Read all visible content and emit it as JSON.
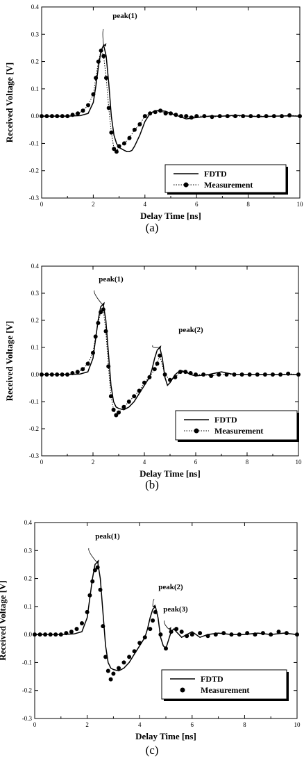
{
  "chart_data": [
    {
      "type": "line",
      "caption": "(a)",
      "xlabel": "Delay Time  [ns]",
      "ylabel": "Received Voltage  [V]",
      "xlim": [
        0,
        10
      ],
      "ylim": [
        -0.3,
        0.4
      ],
      "xticks": [
        "0",
        "2",
        "4",
        "6",
        "8",
        "10"
      ],
      "yticks": [
        "-0.3",
        "-0.2",
        "-0.1",
        "0.0",
        "0.1",
        "0.2",
        "0.3",
        "0.4"
      ],
      "legend": {
        "position": "lower-right",
        "entries": [
          "FDTD",
          "Measurement"
        ]
      },
      "annotations": [
        {
          "text": "peak(1)",
          "x": 2.4,
          "y": 0.26
        }
      ],
      "series": [
        {
          "name": "FDTD",
          "style": "solid",
          "x": [
            0,
            1.0,
            1.5,
            1.8,
            2.0,
            2.1,
            2.2,
            2.3,
            2.4,
            2.5,
            2.6,
            2.7,
            2.8,
            2.9,
            3.0,
            3.1,
            3.2,
            3.3,
            3.4,
            3.5,
            3.6,
            3.8,
            4.0,
            4.2,
            4.4,
            4.6,
            4.8,
            5.0,
            5.3,
            5.6,
            6.0,
            6.5,
            7.0,
            7.5,
            8.0,
            8.5,
            9.0,
            9.5,
            10.0
          ],
          "y": [
            0.0,
            0.0,
            0.002,
            0.01,
            0.05,
            0.11,
            0.18,
            0.24,
            0.26,
            0.22,
            0.12,
            0.0,
            -0.07,
            -0.1,
            -0.115,
            -0.12,
            -0.125,
            -0.13,
            -0.13,
            -0.125,
            -0.11,
            -0.07,
            -0.02,
            0.01,
            0.02,
            0.02,
            0.018,
            0.01,
            0.0,
            -0.01,
            -0.005,
            0.0,
            0.0,
            0.003,
            0.0,
            -0.002,
            0.0,
            0.001,
            0.0
          ]
        },
        {
          "name": "Measurement",
          "style": "dotted-markers",
          "x": [
            0,
            0.2,
            0.4,
            0.6,
            0.8,
            1.0,
            1.2,
            1.4,
            1.6,
            1.8,
            2.0,
            2.1,
            2.2,
            2.3,
            2.4,
            2.5,
            2.6,
            2.7,
            2.8,
            2.9,
            3.0,
            3.2,
            3.4,
            3.6,
            3.8,
            4.0,
            4.2,
            4.4,
            4.6,
            4.8,
            5.0,
            5.2,
            5.4,
            5.6,
            5.8,
            6.0,
            6.3,
            6.6,
            6.9,
            7.2,
            7.5,
            7.8,
            8.1,
            8.4,
            8.7,
            9.0,
            9.3,
            9.6,
            10.0
          ],
          "y": [
            0.0,
            0.0,
            0.0,
            0.0,
            0.0,
            0.0,
            0.005,
            0.01,
            0.02,
            0.04,
            0.08,
            0.14,
            0.2,
            0.24,
            0.22,
            0.14,
            0.03,
            -0.06,
            -0.12,
            -0.13,
            -0.11,
            -0.1,
            -0.08,
            -0.05,
            -0.03,
            0.0,
            0.01,
            0.015,
            0.02,
            0.01,
            0.01,
            0.005,
            0.0,
            0.0,
            -0.005,
            0.0,
            0.0,
            -0.003,
            0.0,
            0.0,
            0.0,
            0.0,
            0.0,
            0.0,
            0.0,
            0.0,
            0.0,
            0.003,
            0.0
          ]
        }
      ]
    },
    {
      "type": "line",
      "caption": "(b)",
      "xlabel": "Delay Time  [ns]",
      "ylabel": "Received Voltage  [V]",
      "xlim": [
        0,
        10
      ],
      "ylim": [
        -0.3,
        0.4
      ],
      "xticks": [
        "0",
        "2",
        "4",
        "6",
        "8",
        "10"
      ],
      "yticks": [
        "-0.3",
        "-0.2",
        "-0.1",
        "0.0",
        "0.1",
        "0.2",
        "0.3",
        "0.4"
      ],
      "legend": {
        "position": "lower-right",
        "entries": [
          "FDTD",
          "Measurement"
        ]
      },
      "annotations": [
        {
          "text": "peak(1)",
          "x": 2.35,
          "y": 0.26
        },
        {
          "text": "peak(2)",
          "x": 4.55,
          "y": 0.1
        }
      ],
      "series": [
        {
          "name": "FDTD",
          "style": "solid",
          "x": [
            0,
            1.0,
            1.5,
            1.8,
            2.0,
            2.1,
            2.2,
            2.3,
            2.4,
            2.5,
            2.6,
            2.7,
            2.8,
            2.9,
            3.0,
            3.2,
            3.4,
            3.6,
            3.8,
            4.0,
            4.2,
            4.3,
            4.4,
            4.5,
            4.6,
            4.7,
            4.8,
            4.9,
            5.0,
            5.2,
            5.4,
            5.6,
            5.8,
            6.0,
            6.5,
            7.0,
            7.5,
            8.0,
            9.0,
            10.0
          ],
          "y": [
            0.0,
            0.0,
            0.002,
            0.01,
            0.06,
            0.13,
            0.2,
            0.25,
            0.26,
            0.2,
            0.08,
            -0.04,
            -0.1,
            -0.12,
            -0.125,
            -0.13,
            -0.12,
            -0.1,
            -0.07,
            -0.04,
            -0.01,
            0.02,
            0.06,
            0.09,
            0.1,
            0.06,
            -0.01,
            -0.04,
            -0.03,
            0.0,
            0.015,
            0.01,
            0.0,
            -0.005,
            0.0,
            0.01,
            0.0,
            0.0,
            0.0,
            0.0
          ]
        },
        {
          "name": "Measurement",
          "style": "dotted-markers",
          "x": [
            0,
            0.2,
            0.4,
            0.6,
            0.8,
            1.0,
            1.2,
            1.4,
            1.6,
            1.8,
            2.0,
            2.1,
            2.2,
            2.3,
            2.4,
            2.5,
            2.6,
            2.7,
            2.8,
            2.9,
            3.0,
            3.2,
            3.4,
            3.6,
            3.8,
            4.0,
            4.2,
            4.4,
            4.5,
            4.6,
            4.8,
            5.0,
            5.2,
            5.4,
            5.6,
            5.8,
            6.0,
            6.3,
            6.6,
            6.9,
            7.2,
            7.5,
            7.8,
            8.1,
            8.4,
            8.7,
            9.0,
            9.3,
            9.6,
            10.0
          ],
          "y": [
            0.0,
            0.0,
            0.0,
            0.0,
            0.0,
            0.0,
            0.005,
            0.01,
            0.02,
            0.04,
            0.08,
            0.14,
            0.19,
            0.23,
            0.24,
            0.16,
            0.03,
            -0.08,
            -0.13,
            -0.15,
            -0.14,
            -0.12,
            -0.1,
            -0.08,
            -0.06,
            -0.03,
            -0.01,
            0.02,
            0.04,
            0.07,
            0.0,
            -0.02,
            -0.01,
            0.01,
            0.01,
            0.005,
            0.0,
            0.0,
            -0.005,
            0.0,
            0.0,
            0.0,
            0.0,
            0.0,
            0.0,
            0.0,
            0.0,
            0.0,
            0.003,
            0.0
          ]
        }
      ]
    },
    {
      "type": "line",
      "caption": "(c)",
      "xlabel": "Delay Time  [ns]",
      "ylabel": "Received Voltage [V]",
      "xlim": [
        0,
        10
      ],
      "ylim": [
        -0.3,
        0.4
      ],
      "xticks": [
        "0",
        "2",
        "4",
        "6",
        "8",
        "10"
      ],
      "yticks": [
        "-0.3",
        "-0.2",
        "-0.1",
        "0.0",
        "0.1",
        "0.2",
        "0.3",
        "0.4"
      ],
      "legend": {
        "position": "lower-right",
        "entries": [
          "FDTD",
          "Measurement"
        ]
      },
      "annotations": [
        {
          "text": "peak(1)",
          "x": 2.35,
          "y": 0.26
        },
        {
          "text": "peak(2)",
          "x": 4.5,
          "y": 0.1
        },
        {
          "text": "peak(3)",
          "x": 5.1,
          "y": 0.02
        }
      ],
      "series": [
        {
          "name": "FDTD",
          "style": "solid",
          "x": [
            0,
            1.0,
            1.5,
            1.8,
            2.0,
            2.1,
            2.2,
            2.3,
            2.4,
            2.5,
            2.6,
            2.7,
            2.8,
            2.9,
            3.0,
            3.2,
            3.4,
            3.6,
            3.8,
            4.0,
            4.2,
            4.3,
            4.4,
            4.5,
            4.6,
            4.7,
            4.8,
            4.9,
            5.0,
            5.1,
            5.2,
            5.3,
            5.4,
            5.6,
            5.8,
            6.0,
            6.3,
            6.6,
            7.0,
            7.5,
            8.0,
            8.5,
            9.0,
            9.5,
            10.0
          ],
          "y": [
            0.0,
            0.0,
            0.002,
            0.01,
            0.06,
            0.13,
            0.2,
            0.25,
            0.26,
            0.2,
            0.08,
            -0.04,
            -0.1,
            -0.12,
            -0.125,
            -0.13,
            -0.12,
            -0.1,
            -0.07,
            -0.04,
            -0.01,
            0.02,
            0.06,
            0.09,
            0.1,
            0.06,
            -0.01,
            -0.04,
            -0.05,
            -0.02,
            0.01,
            0.02,
            0.01,
            -0.01,
            0.0,
            0.01,
            -0.01,
            0.0,
            0.005,
            0.0,
            0.0,
            0.005,
            0.0,
            0.005,
            0.0
          ]
        },
        {
          "name": "Measurement",
          "style": "markers",
          "x": [
            0,
            0.2,
            0.4,
            0.6,
            0.8,
            1.0,
            1.2,
            1.4,
            1.6,
            1.8,
            2.0,
            2.1,
            2.2,
            2.3,
            2.4,
            2.5,
            2.6,
            2.7,
            2.8,
            2.9,
            3.0,
            3.2,
            3.4,
            3.6,
            3.8,
            4.0,
            4.2,
            4.4,
            4.5,
            4.6,
            4.8,
            5.0,
            5.2,
            5.4,
            5.6,
            5.8,
            6.0,
            6.3,
            6.6,
            6.9,
            7.2,
            7.5,
            7.8,
            8.1,
            8.4,
            8.7,
            9.0,
            9.3,
            9.6,
            10.0
          ],
          "y": [
            0.0,
            0.0,
            0.0,
            0.0,
            0.0,
            0.0,
            0.005,
            0.01,
            0.02,
            0.04,
            0.08,
            0.14,
            0.19,
            0.23,
            0.24,
            0.16,
            0.03,
            -0.08,
            -0.13,
            -0.16,
            -0.14,
            -0.12,
            -0.1,
            -0.08,
            -0.06,
            -0.03,
            -0.01,
            0.02,
            0.05,
            0.08,
            0.0,
            -0.05,
            0.01,
            0.02,
            0.01,
            -0.005,
            0.0,
            0.005,
            -0.005,
            0.0,
            0.005,
            0.0,
            0.0,
            0.005,
            0.0,
            0.005,
            0.0,
            0.01,
            0.005,
            0.0
          ]
        }
      ]
    }
  ]
}
